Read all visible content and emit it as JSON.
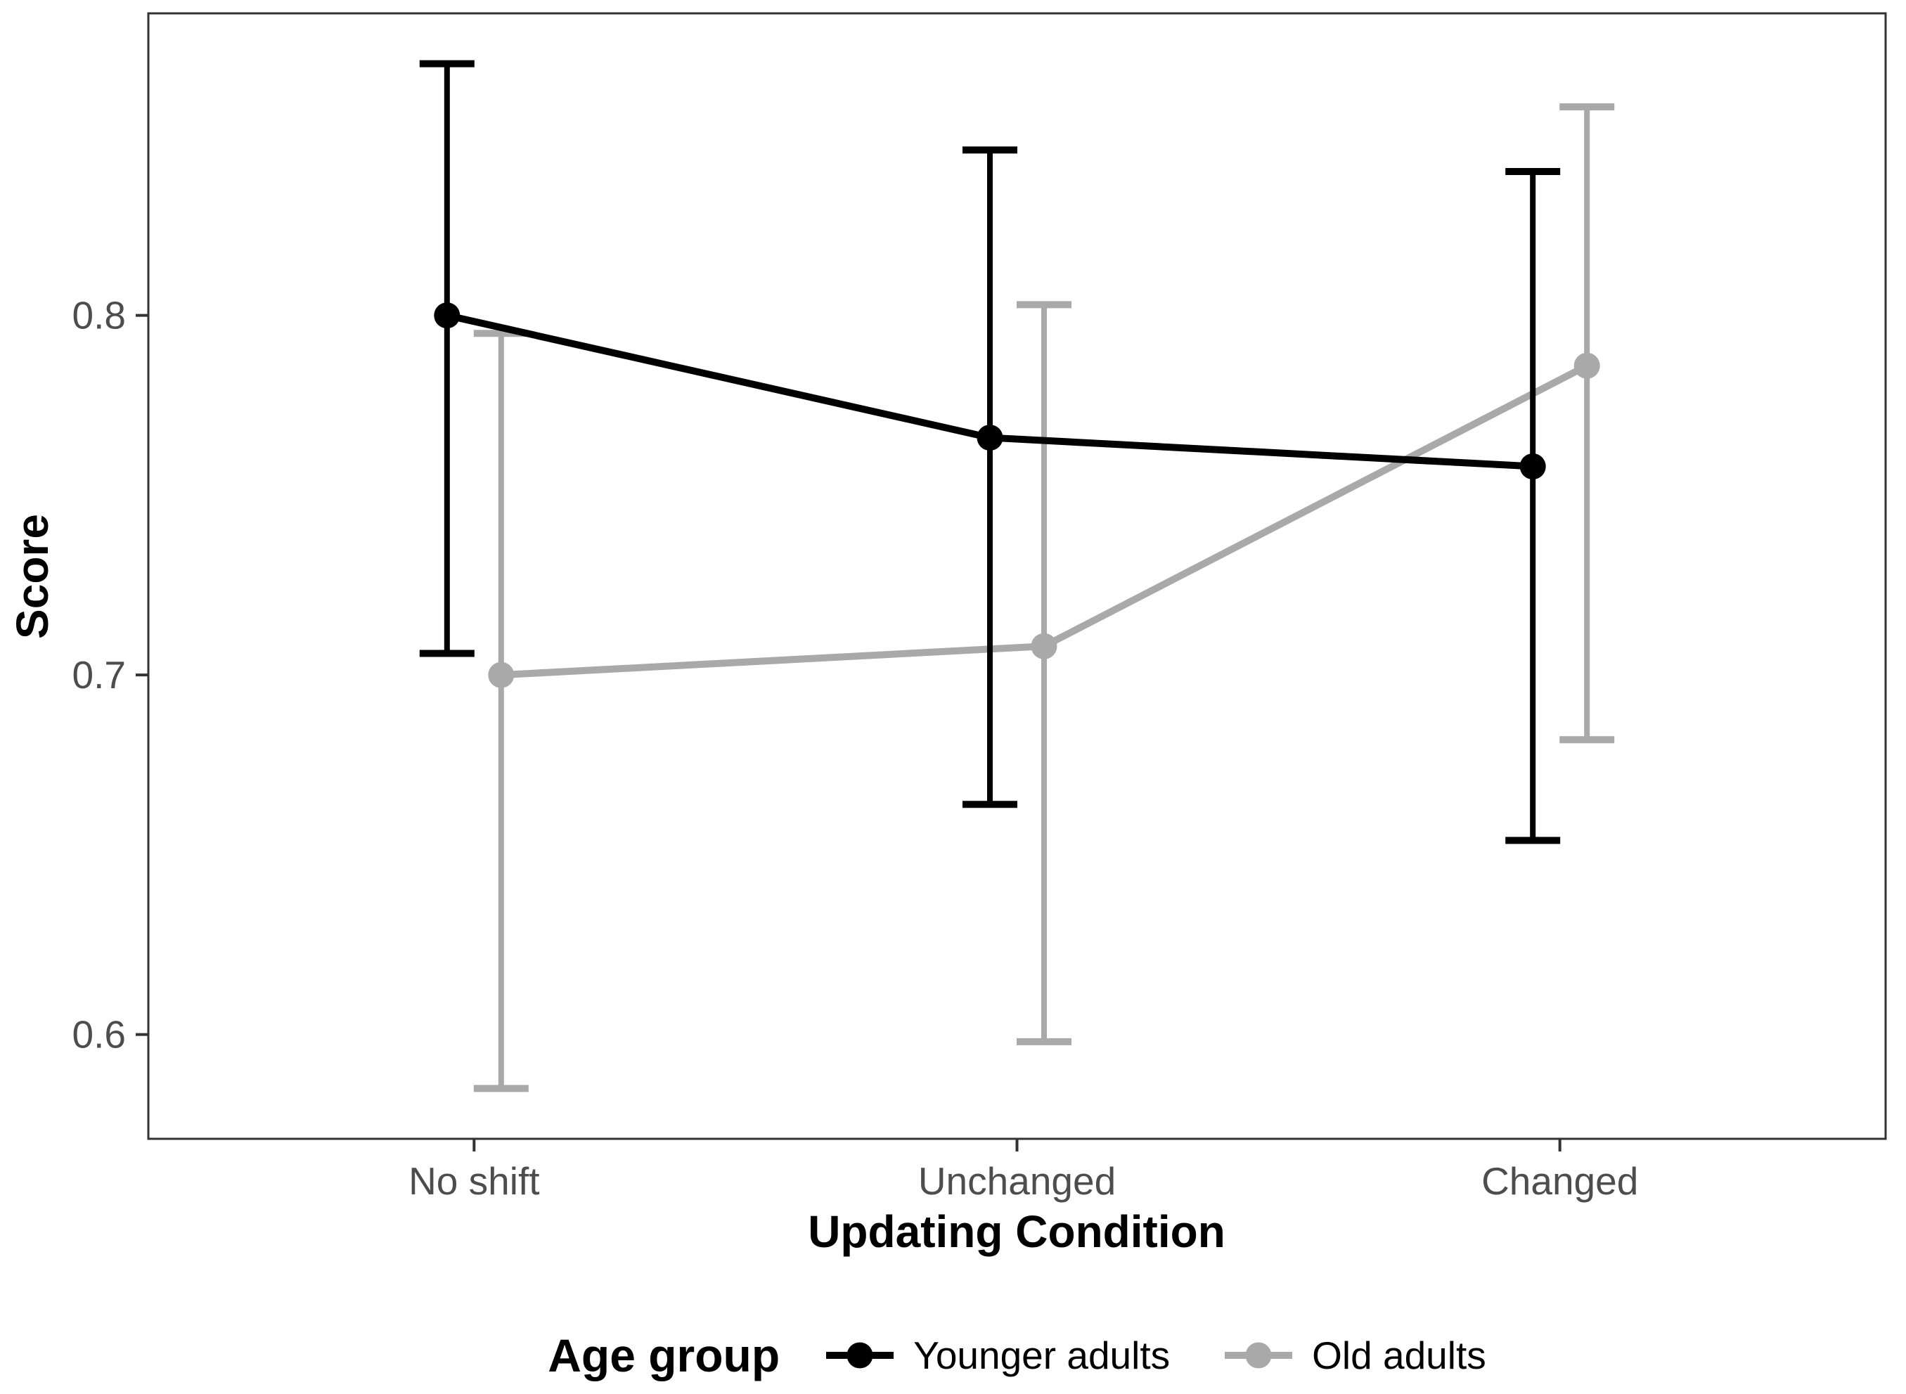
{
  "chart_data": {
    "type": "line",
    "title": "",
    "categories": [
      "No shift",
      "Unchanged",
      "Changed"
    ],
    "xlabel": "Updating Condition",
    "ylabel": "Score",
    "y_ticks": [
      "0.8",
      "0.7",
      "0.6"
    ],
    "y_tick_values": [
      0.8,
      0.7,
      0.6
    ],
    "ylim": [
      0.571,
      0.884
    ],
    "grid": false,
    "error_bars": true,
    "legend_position": "bottom",
    "series": [
      {
        "name": "Younger adults",
        "color": "#000000",
        "values": [
          0.8,
          0.766,
          0.758
        ],
        "ci_low": [
          0.706,
          0.664,
          0.654
        ],
        "ci_high": [
          0.87,
          0.846,
          0.84
        ]
      },
      {
        "name": "Old adults",
        "color": "#a9a9a9",
        "values": [
          0.7,
          0.708,
          0.786
        ],
        "ci_low": [
          0.585,
          0.598,
          0.682
        ],
        "ci_high": [
          0.795,
          0.803,
          0.858
        ]
      }
    ]
  },
  "legend": {
    "title": "Age group",
    "items": [
      {
        "label": "Younger adults",
        "color": "#000000"
      },
      {
        "label": "Old adults",
        "color": "#a9a9a9"
      }
    ]
  },
  "style_colors": {
    "tick_text": "#4d4d4d",
    "axis_line": "#333333",
    "background": "#ffffff"
  }
}
